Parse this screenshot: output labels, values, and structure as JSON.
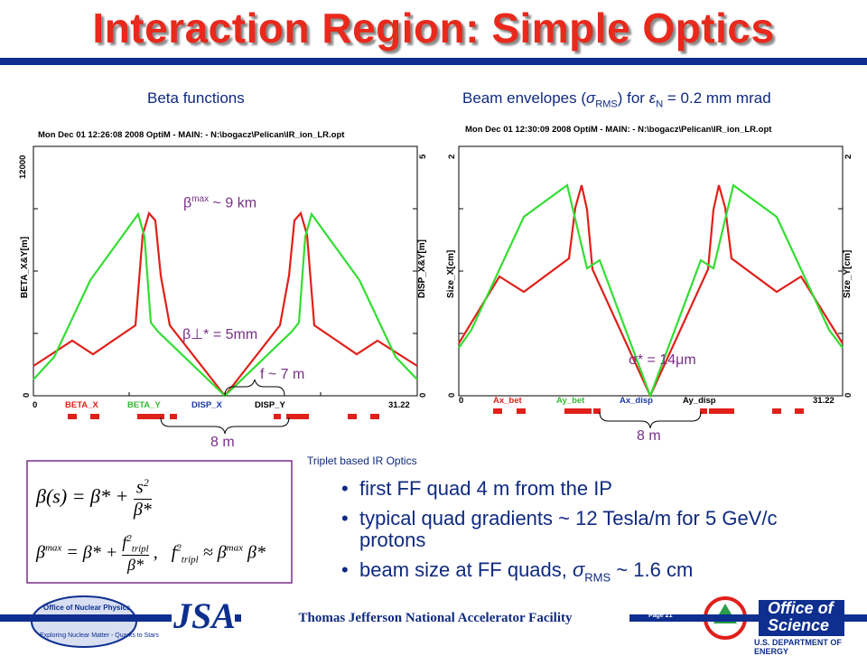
{
  "title": "Interaction Region: Simple Optics",
  "left_panel": {
    "subtitle": "Beta functions",
    "header": "Mon Dec 01 12:26:08 2008    OptiM - MAIN: - N:\\bogacz\\Pelican\\IR_ion_LR.opt",
    "y_left_label": "BETA_X&Y[m]",
    "y_right_label": "DISP_X&Y[m]",
    "y_left_max": "12000",
    "y_right_max": "5",
    "y_left_min": "0",
    "y_right_min": "0",
    "x_min": "0",
    "x_max": "31.22",
    "legend": [
      "BETA_X",
      "BETA_Y",
      "DISP_X",
      "DISP_Y"
    ],
    "beta_max_label": "β",
    "beta_max_sup": "max",
    "beta_max_value": " ~ 9 km",
    "beta_star": "β⊥* = 5mm",
    "f_label": "f ~ 7 m",
    "span_label": "8 m"
  },
  "right_panel": {
    "subtitle": "Beam envelopes (σRMS) for εN = 0.2 mm mrad",
    "header": "Mon Dec 01 12:30:09 2008    OptiM - MAIN: - N:\\bogacz\\Pelican\\IR_ion_LR.opt",
    "y_left_label": "Size_X[cm]",
    "y_right_label": "Size_Y[cm]",
    "y_left_max": "2",
    "y_right_max": "2",
    "y_left_min": "0",
    "y_right_min": "0",
    "x_min": "0",
    "x_max": "31.22",
    "legend": [
      "Ax_bet",
      "Ay_bet",
      "Ax_disp",
      "Ay_disp"
    ],
    "sigma_star": "σ* = 14μm",
    "span_label": "8 m"
  },
  "formula_box": {
    "caption": "Triplet based IR Optics",
    "formula1": "β(s) = β* + s²/β*",
    "formula2": "βmax = β* + f²tripl/β*,   f²tripl ≈ βmax β*"
  },
  "bullets": [
    "first FF quad 4 m from the IP",
    "typical quad gradients ~ 12 Tesla/m for 5 GeV/c protons",
    "beam size at FF quads, σRMS ~ 1.6 cm"
  ],
  "footer": {
    "text": "Thomas Jefferson National Accelerator Facility",
    "page": "Page 21",
    "logo_left_top": "Office of Nuclear Physics",
    "logo_left_bottom": "Exploring Nuclear Matter - Quarks to Stars",
    "jsa_logo": "JSA",
    "office_line1": "Office of",
    "office_line2": "Science",
    "office_dept": "U.S. DEPARTMENT OF ENERGY"
  },
  "colors": {
    "title": "#e8291c",
    "accent_blue": "#0e2f8f",
    "beta_x": "#e0201a",
    "beta_y": "#33dd33",
    "annotation": "#7a2f8a"
  }
}
